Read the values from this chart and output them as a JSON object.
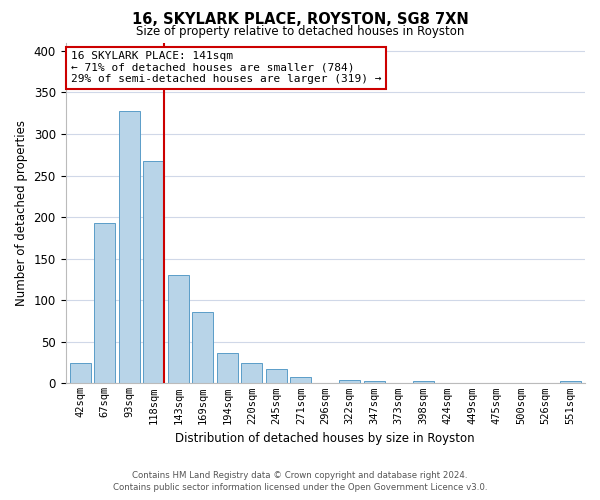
{
  "title": "16, SKYLARK PLACE, ROYSTON, SG8 7XN",
  "subtitle": "Size of property relative to detached houses in Royston",
  "xlabel": "Distribution of detached houses by size in Royston",
  "ylabel": "Number of detached properties",
  "bar_labels": [
    "42sqm",
    "67sqm",
    "93sqm",
    "118sqm",
    "143sqm",
    "169sqm",
    "194sqm",
    "220sqm",
    "245sqm",
    "271sqm",
    "296sqm",
    "322sqm",
    "347sqm",
    "373sqm",
    "398sqm",
    "424sqm",
    "449sqm",
    "475sqm",
    "500sqm",
    "526sqm",
    "551sqm"
  ],
  "bar_values": [
    25,
    193,
    328,
    267,
    130,
    86,
    37,
    25,
    17,
    8,
    0,
    4,
    3,
    0,
    3,
    0,
    0,
    0,
    0,
    0,
    3
  ],
  "bar_color": "#b8d4e8",
  "bar_edge_color": "#5a9dc8",
  "annotation_title": "16 SKYLARK PLACE: 141sqm",
  "annotation_line1": "← 71% of detached houses are smaller (784)",
  "annotation_line2": "29% of semi-detached houses are larger (319) →",
  "annotation_box_color": "#ffffff",
  "annotation_box_edge": "#cc0000",
  "vline_color": "#cc0000",
  "vline_x_bar_index": 3,
  "ylim": [
    0,
    410
  ],
  "yticks": [
    0,
    50,
    100,
    150,
    200,
    250,
    300,
    350,
    400
  ],
  "footer_line1": "Contains HM Land Registry data © Crown copyright and database right 2024.",
  "footer_line2": "Contains public sector information licensed under the Open Government Licence v3.0.",
  "bg_color": "#ffffff",
  "grid_color": "#d0d8e8"
}
